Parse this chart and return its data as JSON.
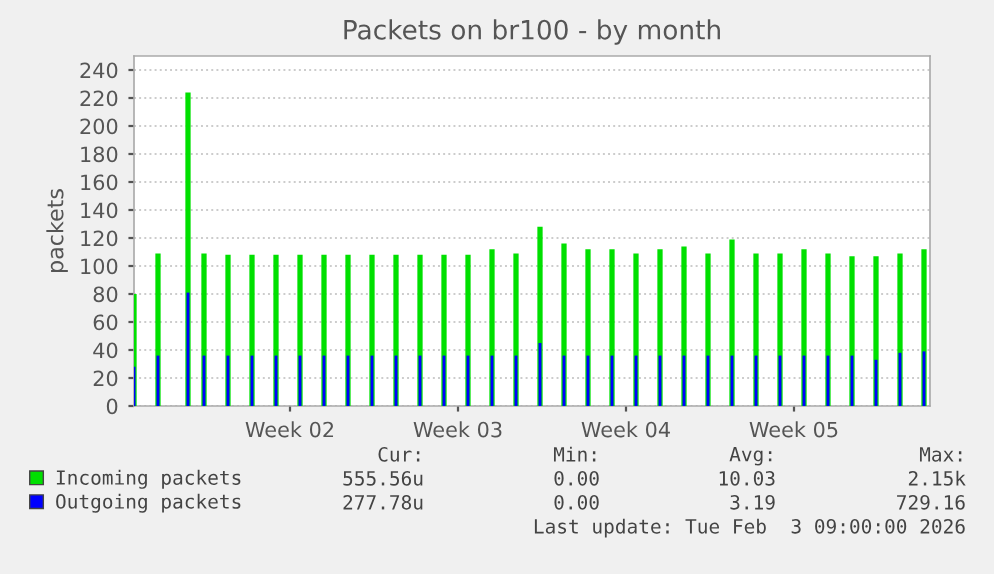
{
  "chart_data": {
    "type": "bar",
    "title": "Packets on br100 - by month",
    "ylabel": "packets",
    "x": [
      "2026-01-02T00:00",
      "2026-01-03T00:00",
      "2026-01-04T06:00",
      "2026-01-04T22:00",
      "2026-01-05T22:00",
      "2026-01-06T22:00",
      "2026-01-07T22:00",
      "2026-01-08T22:00",
      "2026-01-09T22:00",
      "2026-01-10T22:00",
      "2026-01-11T22:00",
      "2026-01-12T22:00",
      "2026-01-13T22:00",
      "2026-01-14T22:00",
      "2026-01-15T22:00",
      "2026-01-16T22:00",
      "2026-01-17T22:00",
      "2026-01-18T22:00",
      "2026-01-19T22:00",
      "2026-01-20T22:00",
      "2026-01-21T22:00",
      "2026-01-22T22:00",
      "2026-01-23T22:00",
      "2026-01-24T22:00",
      "2026-01-25T22:00",
      "2026-01-26T22:00",
      "2026-01-27T22:00",
      "2026-01-28T22:00",
      "2026-01-29T22:00",
      "2026-01-30T22:00",
      "2026-01-31T22:00",
      "2026-02-01T22:00",
      "2026-02-02T22:00",
      "2026-02-03T22:00"
    ],
    "series": [
      {
        "name": "Incoming packets",
        "color": "#00e000",
        "values": [
          80,
          109,
          224,
          109,
          108,
          108,
          108,
          108,
          108,
          108,
          108,
          108,
          108,
          108,
          108,
          112,
          109,
          128,
          116,
          112,
          112,
          109,
          112,
          114,
          109,
          119,
          109,
          109,
          112,
          109,
          107,
          107,
          109,
          112
        ]
      },
      {
        "name": "Outgoing packets",
        "color": "#0000ff",
        "values": [
          28,
          36,
          81,
          36,
          36,
          36,
          36,
          36,
          36,
          36,
          36,
          36,
          36,
          36,
          36,
          36,
          36,
          45,
          36,
          36,
          36,
          36,
          36,
          36,
          36,
          36,
          36,
          36,
          36,
          36,
          36,
          33,
          38,
          39
        ]
      }
    ],
    "xlim": [
      "2026-01-02T00:00",
      "2026-02-04T04:00"
    ],
    "xticks": [
      {
        "value": "2026-01-08T12:00",
        "label": "Week 02"
      },
      {
        "value": "2026-01-15T12:00",
        "label": "Week 03"
      },
      {
        "value": "2026-01-22T12:00",
        "label": "Week 04"
      },
      {
        "value": "2026-01-29T12:00",
        "label": "Week 05"
      }
    ],
    "ylim": [
      0,
      250
    ],
    "yticks": [
      0,
      20,
      40,
      60,
      80,
      100,
      120,
      140,
      160,
      180,
      200,
      220,
      240
    ],
    "grid": "y",
    "legend": "bottom",
    "annotations": [
      "Cur:",
      "Min:",
      "Avg:",
      "Max:",
      "555.56u",
      "0.00",
      "10.03",
      "2.15k",
      "277.78u",
      "0.00",
      "3.19",
      "729.16",
      "Last update: Tue Feb  3 09:00:00 2026"
    ]
  }
}
